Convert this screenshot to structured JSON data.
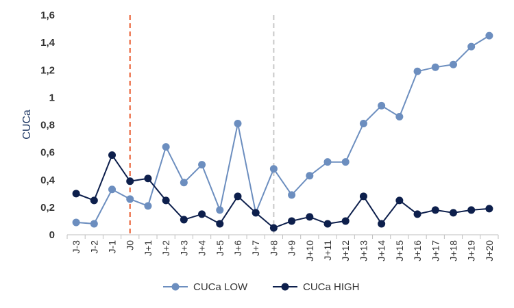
{
  "chart_data": {
    "type": "line",
    "title": "",
    "xlabel": "",
    "ylabel": "CUCa",
    "ylim": [
      0,
      1.6
    ],
    "y_ticks": [
      "0",
      "0,2",
      "0,4",
      "0,6",
      "0,8",
      "1",
      "1,2",
      "1,4",
      "1,6"
    ],
    "grid": false,
    "legend_position": "bottom",
    "categories": [
      "J-3",
      "J-2",
      "J-1",
      "J0",
      "J+1",
      "J+2",
      "J+3",
      "J+4",
      "J+5",
      "J+6",
      "J+7",
      "J+8",
      "J+9",
      "J+10",
      "J+11",
      "J+12",
      "J+13",
      "J+14",
      "J+15",
      "J+16",
      "J+17",
      "J+18",
      "J+19",
      "J+20"
    ],
    "series": [
      {
        "name": "CUCa LOW",
        "color": "#6c8ebf",
        "values": [
          0.09,
          0.08,
          0.33,
          0.26,
          0.21,
          0.64,
          0.38,
          0.51,
          0.18,
          0.81,
          0.16,
          0.48,
          0.29,
          0.43,
          0.53,
          0.53,
          0.81,
          0.94,
          0.86,
          1.19,
          1.22,
          1.24,
          1.37,
          1.45
        ]
      },
      {
        "name": "CUCa HIGH",
        "color": "#0d1f4c",
        "values": [
          0.3,
          0.25,
          0.58,
          0.39,
          0.41,
          0.25,
          0.11,
          0.15,
          0.08,
          0.28,
          0.16,
          0.05,
          0.1,
          0.13,
          0.08,
          0.1,
          0.28,
          0.08,
          0.25,
          0.15,
          0.18,
          0.16,
          0.18,
          0.19
        ]
      }
    ],
    "reference_lines": [
      {
        "category": "J0",
        "color": "#e8582b",
        "style": "dashed"
      },
      {
        "category": "J+8",
        "color": "#c8c8c8",
        "style": "dashed"
      }
    ]
  }
}
